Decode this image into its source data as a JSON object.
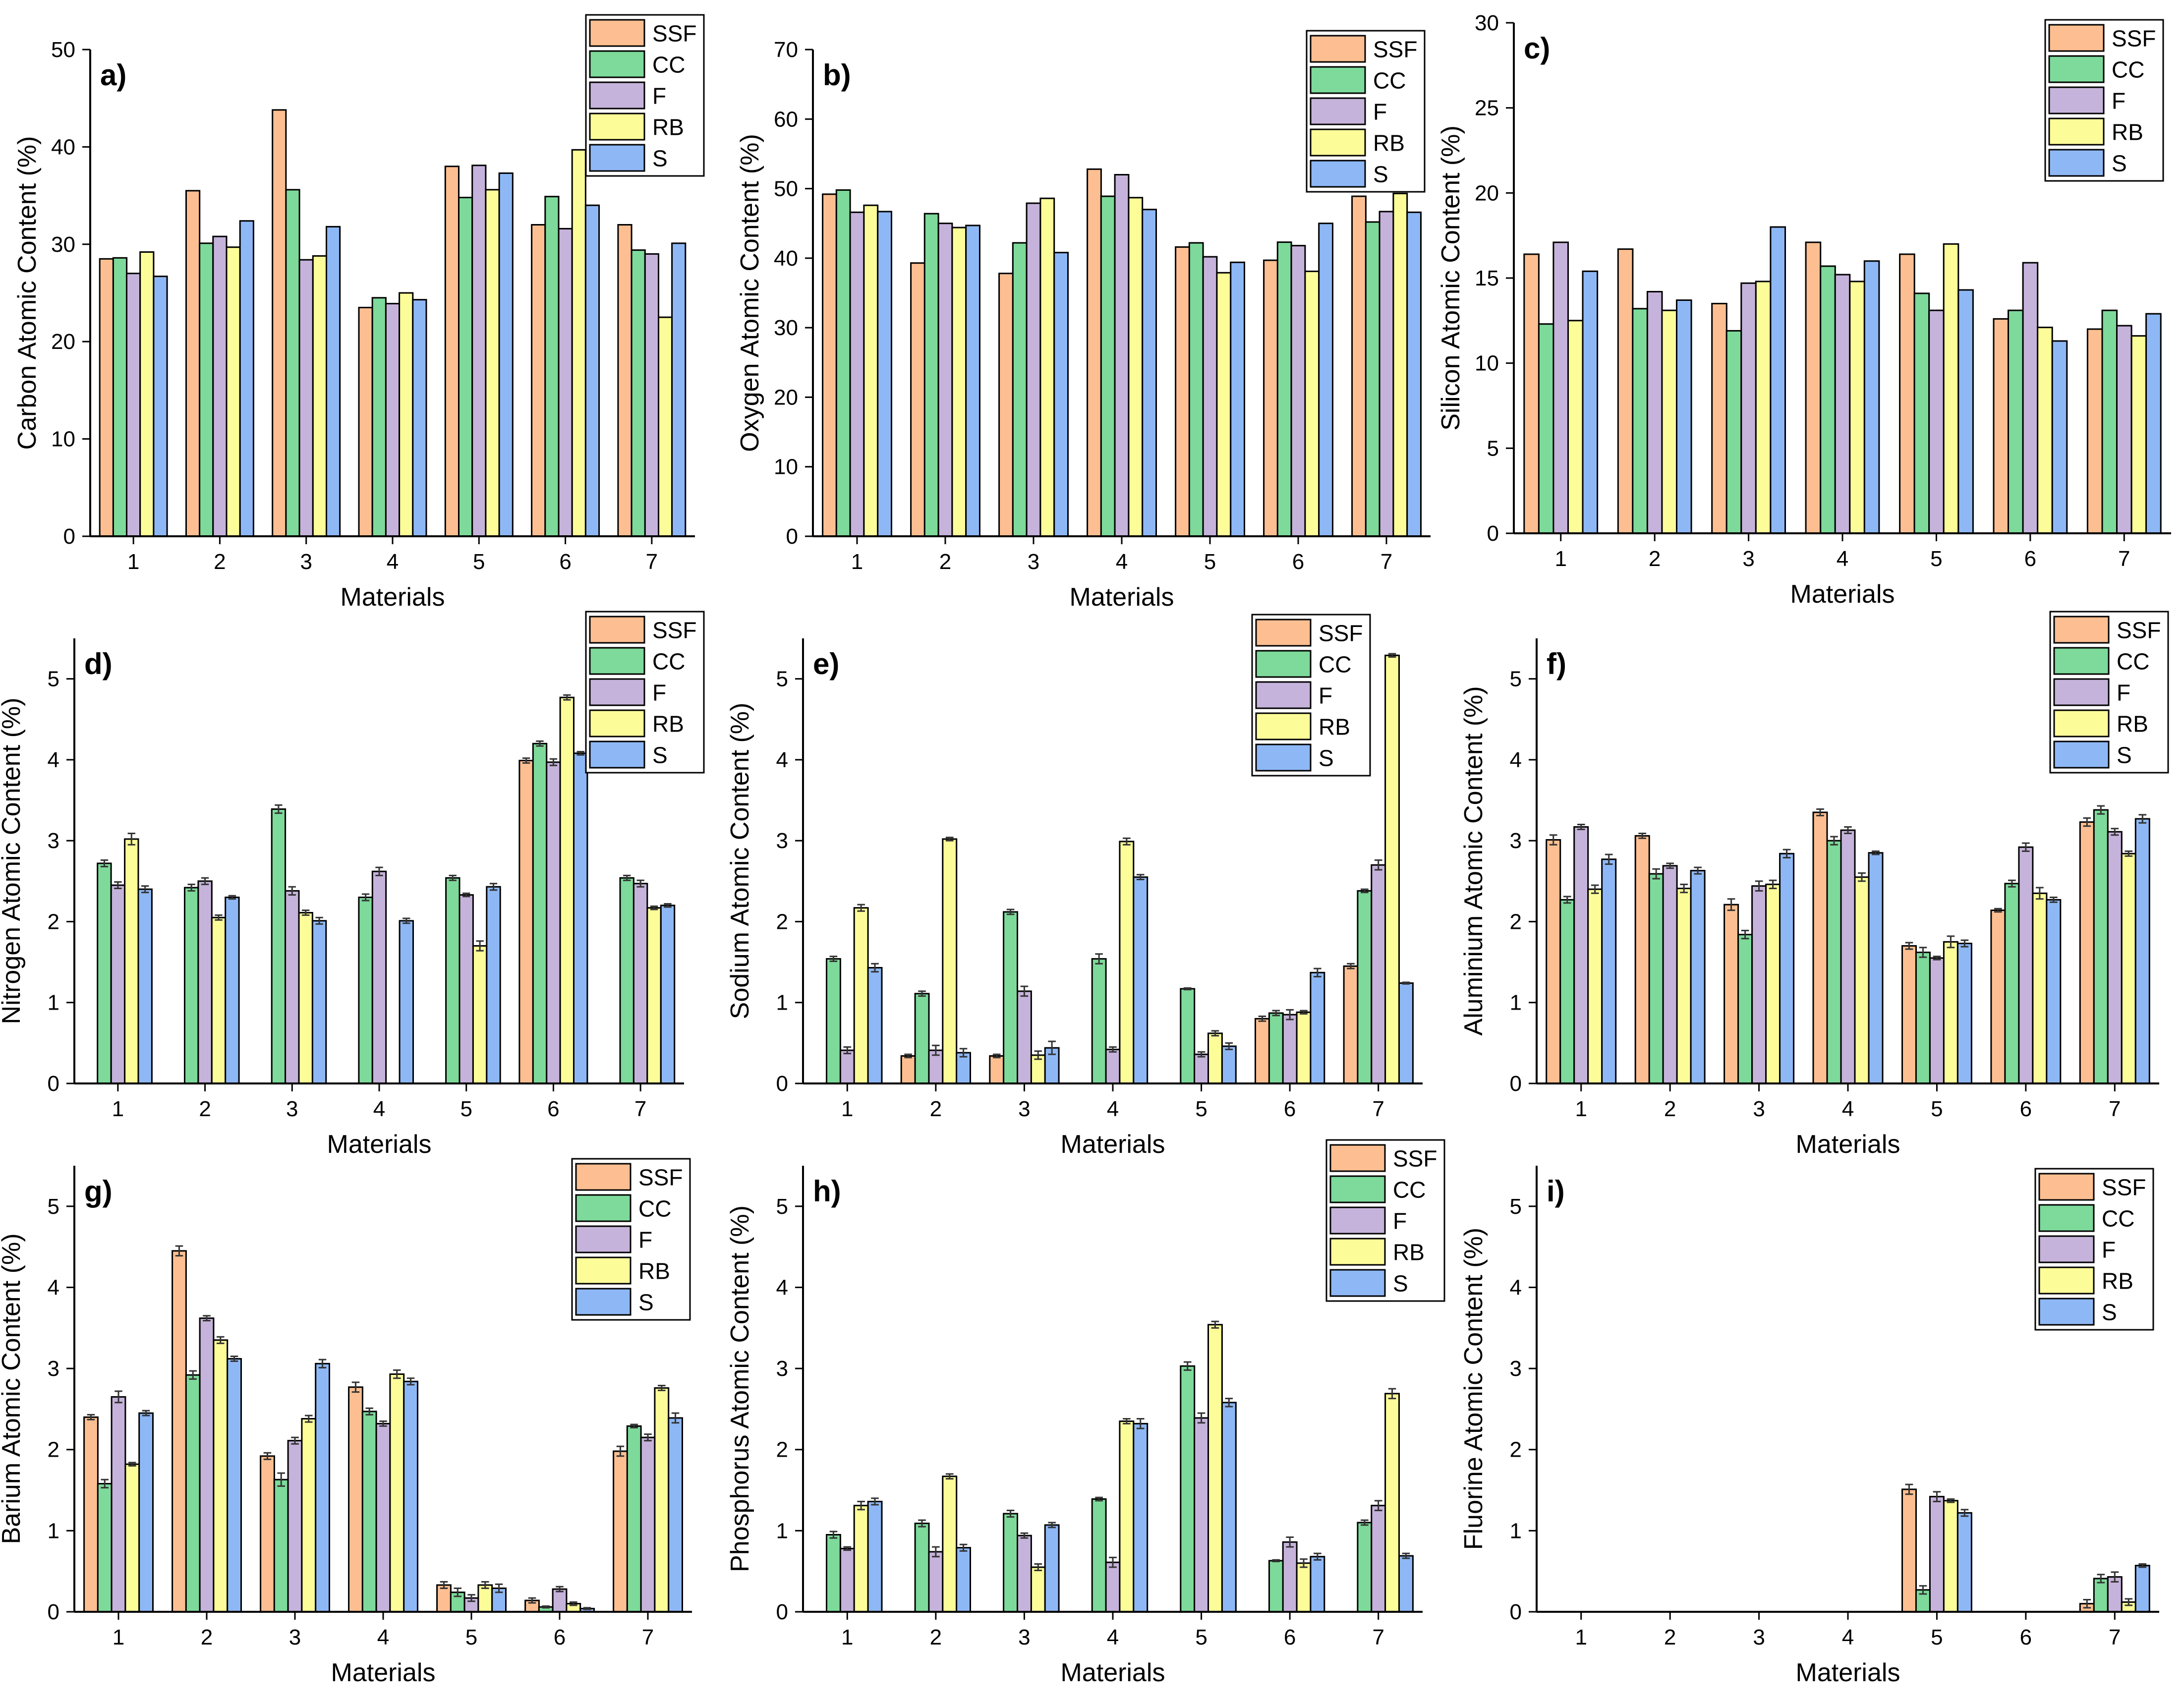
{
  "series_names": [
    "SSF",
    "CC",
    "F",
    "RB",
    "S"
  ],
  "series_colors": [
    "#FDBF91",
    "#7DDA9A",
    "#C6B3DB",
    "#FCFC99",
    "#8EB8F5"
  ],
  "chart_data": [
    {
      "type": "bar",
      "panel": "a)",
      "title": "",
      "xlabel": "Materials",
      "ylabel": "Carbon Atomic Content (%)",
      "ylim": [
        0,
        50
      ],
      "yticks": [
        0,
        10,
        20,
        30,
        40,
        50
      ],
      "categories": [
        "1",
        "2",
        "3",
        "4",
        "5",
        "6",
        "7"
      ],
      "legend_position": "top-right",
      "series": [
        {
          "name": "SSF",
          "values": [
            28.5,
            35.5,
            43.8,
            23.5,
            38.0,
            32.0,
            32.0
          ]
        },
        {
          "name": "CC",
          "values": [
            28.6,
            30.1,
            35.6,
            24.5,
            34.8,
            34.9,
            29.4
          ]
        },
        {
          "name": "F",
          "values": [
            27.0,
            30.8,
            28.4,
            23.9,
            38.1,
            31.6,
            29.0
          ]
        },
        {
          "name": "RB",
          "values": [
            29.2,
            29.7,
            28.8,
            25.0,
            35.6,
            39.7,
            22.5
          ]
        },
        {
          "name": "S",
          "values": [
            26.7,
            32.4,
            31.8,
            24.3,
            37.3,
            34.0,
            30.1
          ]
        }
      ]
    },
    {
      "type": "bar",
      "panel": "b)",
      "title": "",
      "xlabel": "Materials",
      "ylabel": "Oxygen Atomic Content (%)",
      "ylim": [
        0,
        70
      ],
      "yticks": [
        0,
        10,
        20,
        30,
        40,
        50,
        60,
        70
      ],
      "categories": [
        "1",
        "2",
        "3",
        "4",
        "5",
        "6",
        "7"
      ],
      "legend_position": "top-right",
      "series": [
        {
          "name": "SSF",
          "values": [
            49.2,
            39.3,
            37.8,
            52.8,
            41.6,
            39.7,
            48.9
          ]
        },
        {
          "name": "CC",
          "values": [
            49.8,
            46.4,
            42.2,
            48.9,
            42.2,
            42.3,
            45.2
          ]
        },
        {
          "name": "F",
          "values": [
            46.6,
            45.0,
            47.9,
            52.0,
            40.2,
            41.8,
            46.7
          ]
        },
        {
          "name": "RB",
          "values": [
            47.6,
            44.4,
            48.6,
            48.7,
            37.9,
            38.1,
            49.3
          ]
        },
        {
          "name": "S",
          "values": [
            46.7,
            44.7,
            40.8,
            47.0,
            39.4,
            45.0,
            46.6
          ]
        }
      ]
    },
    {
      "type": "bar",
      "panel": "c)",
      "title": "",
      "xlabel": "Materials",
      "ylabel": "Silicon Atomic Content (%)",
      "ylim": [
        0,
        30
      ],
      "yticks": [
        0,
        5,
        10,
        15,
        20,
        25,
        30
      ],
      "categories": [
        "1",
        "2",
        "3",
        "4",
        "5",
        "6",
        "7"
      ],
      "legend_position": "top-right",
      "series": [
        {
          "name": "SSF",
          "values": [
            16.4,
            16.7,
            13.5,
            17.1,
            16.4,
            12.6,
            12.0
          ]
        },
        {
          "name": "CC",
          "values": [
            12.3,
            13.2,
            11.9,
            15.7,
            14.1,
            13.1,
            13.1
          ]
        },
        {
          "name": "F",
          "values": [
            17.1,
            14.2,
            14.7,
            15.2,
            13.1,
            15.9,
            12.2
          ]
        },
        {
          "name": "RB",
          "values": [
            12.5,
            13.1,
            14.8,
            14.8,
            17.0,
            12.1,
            11.6
          ]
        },
        {
          "name": "S",
          "values": [
            15.4,
            13.7,
            18.0,
            16.0,
            14.3,
            11.3,
            12.9
          ]
        }
      ]
    },
    {
      "type": "bar",
      "panel": "d)",
      "title": "",
      "xlabel": "Materials",
      "ylabel": "Nitrogen Atomic Content (%)",
      "ylim": [
        0,
        5.5
      ],
      "yticks": [
        0,
        1,
        2,
        3,
        4,
        5
      ],
      "categories": [
        "1",
        "2",
        "3",
        "4",
        "5",
        "6",
        "7"
      ],
      "legend_position": "top-right",
      "series": [
        {
          "name": "SSF",
          "values": [
            0,
            0,
            0,
            0,
            0,
            3.99,
            0
          ],
          "errors": [
            0,
            0,
            0,
            0,
            0,
            0.03,
            0
          ]
        },
        {
          "name": "CC",
          "values": [
            2.72,
            2.42,
            3.39,
            2.3,
            2.54,
            4.2,
            2.54
          ],
          "errors": [
            0.04,
            0.04,
            0.05,
            0.04,
            0.03,
            0.03,
            0.03
          ]
        },
        {
          "name": "F",
          "values": [
            2.45,
            2.5,
            2.38,
            2.62,
            2.33,
            3.97,
            2.47
          ],
          "errors": [
            0.04,
            0.04,
            0.05,
            0.05,
            0.02,
            0.04,
            0.04
          ]
        },
        {
          "name": "RB",
          "values": [
            3.02,
            2.05,
            2.11,
            0,
            1.7,
            4.77,
            2.17
          ],
          "errors": [
            0.07,
            0.03,
            0.03,
            0,
            0.06,
            0.03,
            0.02
          ]
        },
        {
          "name": "S",
          "values": [
            2.4,
            2.3,
            2.01,
            2.01,
            2.43,
            4.08,
            2.2
          ],
          "errors": [
            0.04,
            0.02,
            0.04,
            0.03,
            0.04,
            0.02,
            0.02
          ]
        }
      ]
    },
    {
      "type": "bar",
      "panel": "e)",
      "title": "",
      "xlabel": "Materials",
      "ylabel": "Sodium Atomic Content (%)",
      "ylim": [
        0,
        5.5
      ],
      "yticks": [
        0,
        1,
        2,
        3,
        4,
        5
      ],
      "categories": [
        "1",
        "2",
        "3",
        "4",
        "5",
        "6",
        "7"
      ],
      "legend_position": "top-right",
      "series": [
        {
          "name": "SSF",
          "values": [
            0,
            0.34,
            0.34,
            0,
            0,
            0.8,
            1.45
          ],
          "errors": [
            0,
            0.02,
            0.02,
            0,
            0,
            0.03,
            0.03
          ]
        },
        {
          "name": "CC",
          "values": [
            1.54,
            1.11,
            2.12,
            1.54,
            1.17,
            0.87,
            2.38
          ],
          "errors": [
            0.03,
            0.03,
            0.03,
            0.06,
            0.01,
            0.03,
            0.02
          ]
        },
        {
          "name": "F",
          "values": [
            0.41,
            0.41,
            1.14,
            0.42,
            0.36,
            0.85,
            2.7
          ],
          "errors": [
            0.04,
            0.06,
            0.06,
            0.03,
            0.03,
            0.06,
            0.06
          ]
        },
        {
          "name": "RB",
          "values": [
            2.17,
            3.02,
            0.35,
            2.99,
            0.62,
            0.88,
            5.29
          ],
          "errors": [
            0.04,
            0.02,
            0.05,
            0.04,
            0.03,
            0.02,
            0.02
          ]
        },
        {
          "name": "S",
          "values": [
            1.43,
            0.38,
            0.44,
            2.55,
            0.46,
            1.37,
            1.24
          ],
          "errors": [
            0.05,
            0.05,
            0.08,
            0.03,
            0.04,
            0.05,
            0.01
          ]
        }
      ]
    },
    {
      "type": "bar",
      "panel": "f)",
      "title": "",
      "xlabel": "Materials",
      "ylabel": "Aluminium Atomic Content (%)",
      "ylim": [
        0,
        5.5
      ],
      "yticks": [
        0,
        1,
        2,
        3,
        4,
        5
      ],
      "categories": [
        "1",
        "2",
        "3",
        "4",
        "5",
        "6",
        "7"
      ],
      "legend_position": "top-right",
      "series": [
        {
          "name": "SSF",
          "values": [
            3.01,
            3.06,
            2.21,
            3.35,
            1.7,
            2.14,
            3.23
          ],
          "errors": [
            0.06,
            0.03,
            0.07,
            0.04,
            0.04,
            0.02,
            0.05
          ]
        },
        {
          "name": "CC",
          "values": [
            2.27,
            2.59,
            1.84,
            3.0,
            1.62,
            2.47,
            3.38
          ],
          "errors": [
            0.04,
            0.06,
            0.05,
            0.05,
            0.06,
            0.04,
            0.05
          ]
        },
        {
          "name": "F",
          "values": [
            3.17,
            2.69,
            2.44,
            3.13,
            1.55,
            2.92,
            3.11
          ],
          "errors": [
            0.03,
            0.03,
            0.06,
            0.04,
            0.02,
            0.05,
            0.04
          ]
        },
        {
          "name": "RB",
          "values": [
            2.4,
            2.41,
            2.46,
            2.55,
            1.75,
            2.35,
            2.84
          ],
          "errors": [
            0.05,
            0.05,
            0.05,
            0.05,
            0.07,
            0.07,
            0.03
          ]
        },
        {
          "name": "S",
          "values": [
            2.77,
            2.63,
            2.84,
            2.85,
            1.73,
            2.27,
            3.27
          ],
          "errors": [
            0.06,
            0.04,
            0.05,
            0.02,
            0.04,
            0.03,
            0.05
          ]
        }
      ]
    },
    {
      "type": "bar",
      "panel": "g)",
      "title": "",
      "xlabel": "Materials",
      "ylabel": "Barium Atomic Content (%)",
      "ylim": [
        0,
        5.5
      ],
      "yticks": [
        0,
        1,
        2,
        3,
        4,
        5
      ],
      "categories": [
        "1",
        "2",
        "3",
        "4",
        "5",
        "6",
        "7"
      ],
      "legend_position": "top-right",
      "series": [
        {
          "name": "SSF",
          "values": [
            2.4,
            4.45,
            1.92,
            2.77,
            0.33,
            0.14,
            1.98
          ],
          "errors": [
            0.03,
            0.06,
            0.04,
            0.06,
            0.04,
            0.03,
            0.06
          ]
        },
        {
          "name": "CC",
          "values": [
            1.58,
            2.92,
            1.63,
            2.47,
            0.24,
            0.06,
            2.29
          ],
          "errors": [
            0.05,
            0.05,
            0.08,
            0.04,
            0.05,
            0.01,
            0.02
          ]
        },
        {
          "name": "F",
          "values": [
            2.65,
            3.62,
            2.11,
            2.32,
            0.17,
            0.28,
            2.15
          ],
          "errors": [
            0.07,
            0.03,
            0.04,
            0.03,
            0.04,
            0.03,
            0.04
          ]
        },
        {
          "name": "RB",
          "values": [
            1.82,
            3.35,
            2.38,
            2.93,
            0.33,
            0.1,
            2.76
          ],
          "errors": [
            0.02,
            0.04,
            0.04,
            0.05,
            0.04,
            0.02,
            0.03
          ]
        },
        {
          "name": "S",
          "values": [
            2.45,
            3.12,
            3.06,
            2.84,
            0.29,
            0.04,
            2.39
          ],
          "errors": [
            0.03,
            0.03,
            0.05,
            0.04,
            0.05,
            0.01,
            0.06
          ]
        }
      ]
    },
    {
      "type": "bar",
      "panel": "h)",
      "title": "",
      "xlabel": "Materials",
      "ylabel": "Phosphorus Atomic Content (%)",
      "ylim": [
        0,
        5.5
      ],
      "yticks": [
        0,
        1,
        2,
        3,
        4,
        5
      ],
      "categories": [
        "1",
        "2",
        "3",
        "4",
        "5",
        "6",
        "7"
      ],
      "legend_position": "top-right",
      "series": [
        {
          "name": "SSF",
          "values": [
            0,
            0,
            0,
            0,
            0,
            0,
            0
          ],
          "errors": [
            0,
            0,
            0,
            0,
            0,
            0,
            0
          ]
        },
        {
          "name": "CC",
          "values": [
            0.95,
            1.09,
            1.21,
            1.39,
            3.03,
            0.63,
            1.1
          ],
          "errors": [
            0.04,
            0.04,
            0.04,
            0.02,
            0.05,
            0.01,
            0.03
          ]
        },
        {
          "name": "F",
          "values": [
            0.78,
            0.74,
            0.94,
            0.61,
            2.39,
            0.86,
            1.31
          ],
          "errors": [
            0.02,
            0.06,
            0.03,
            0.06,
            0.06,
            0.06,
            0.06
          ]
        },
        {
          "name": "RB",
          "values": [
            1.31,
            1.67,
            0.55,
            2.35,
            3.54,
            0.6,
            2.69
          ],
          "errors": [
            0.05,
            0.03,
            0.04,
            0.03,
            0.04,
            0.05,
            0.06
          ]
        },
        {
          "name": "S",
          "values": [
            1.36,
            0.79,
            1.07,
            2.32,
            2.58,
            0.68,
            0.69
          ],
          "errors": [
            0.04,
            0.04,
            0.03,
            0.06,
            0.05,
            0.04,
            0.03
          ]
        }
      ]
    },
    {
      "type": "bar",
      "panel": "i)",
      "title": "",
      "xlabel": "Materials",
      "ylabel": "Fluorine Atomic Content (%)",
      "ylim": [
        0,
        5.5
      ],
      "yticks": [
        0,
        1,
        2,
        3,
        4,
        5
      ],
      "categories": [
        "1",
        "2",
        "3",
        "4",
        "5",
        "6",
        "7"
      ],
      "legend_position": "top-right",
      "series": [
        {
          "name": "SSF",
          "values": [
            0,
            0,
            0,
            0,
            1.51,
            0,
            0.1
          ],
          "errors": [
            0,
            0,
            0,
            0,
            0.06,
            0,
            0.05
          ]
        },
        {
          "name": "CC",
          "values": [
            0,
            0,
            0,
            0,
            0.27,
            0,
            0.41
          ],
          "errors": [
            0,
            0,
            0,
            0,
            0.05,
            0,
            0.05
          ]
        },
        {
          "name": "F",
          "values": [
            0,
            0,
            0,
            0,
            1.42,
            0,
            0.43
          ],
          "errors": [
            0,
            0,
            0,
            0,
            0.06,
            0,
            0.06
          ]
        },
        {
          "name": "RB",
          "values": [
            0,
            0,
            0,
            0,
            1.37,
            0,
            0.12
          ],
          "errors": [
            0,
            0,
            0,
            0,
            0.02,
            0,
            0.04
          ]
        },
        {
          "name": "S",
          "values": [
            0,
            0,
            0,
            0,
            1.22,
            0,
            0.57
          ],
          "errors": [
            0,
            0,
            0,
            0,
            0.04,
            0,
            0.02
          ]
        }
      ]
    }
  ]
}
